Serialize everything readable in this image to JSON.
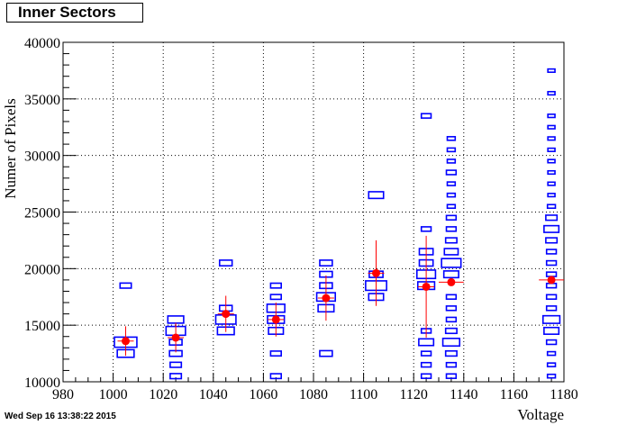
{
  "title": "Inner Sectors",
  "footer_stamp": "Wed Sep 16 13:38:22 2015",
  "colors": {
    "boxes": "#0000ff",
    "profile": "#ff0000",
    "grid": "#000000"
  },
  "chart_data": {
    "type": "box-histogram-with-profile",
    "title": "Inner Sectors",
    "xlabel": "Voltage",
    "ylabel": "Numer of Pixels",
    "xlim": [
      980,
      1180
    ],
    "ylim": [
      10000,
      40000
    ],
    "x_ticks": [
      980,
      1000,
      1020,
      1040,
      1060,
      1080,
      1100,
      1120,
      1140,
      1160,
      1180
    ],
    "y_ticks": [
      10000,
      15000,
      20000,
      25000,
      30000,
      35000,
      40000
    ],
    "grid": true,
    "bin_width_x": 10,
    "bin_width_y": 1000,
    "histogram_bins": [
      {
        "x": 1005,
        "y": 18500,
        "w": 0.2
      },
      {
        "x": 1005,
        "y": 13500,
        "w": 0.8
      },
      {
        "x": 1005,
        "y": 12500,
        "w": 0.45
      },
      {
        "x": 1025,
        "y": 15500,
        "w": 0.4
      },
      {
        "x": 1025,
        "y": 14500,
        "w": 0.6
      },
      {
        "x": 1025,
        "y": 13500,
        "w": 0.25
      },
      {
        "x": 1025,
        "y": 12500,
        "w": 0.25
      },
      {
        "x": 1025,
        "y": 11500,
        "w": 0.2
      },
      {
        "x": 1025,
        "y": 10500,
        "w": 0.2
      },
      {
        "x": 1045,
        "y": 20500,
        "w": 0.25
      },
      {
        "x": 1045,
        "y": 16500,
        "w": 0.25
      },
      {
        "x": 1045,
        "y": 15500,
        "w": 0.65
      },
      {
        "x": 1045,
        "y": 14500,
        "w": 0.45
      },
      {
        "x": 1065,
        "y": 18500,
        "w": 0.18
      },
      {
        "x": 1065,
        "y": 17500,
        "w": 0.18
      },
      {
        "x": 1065,
        "y": 16500,
        "w": 0.5
      },
      {
        "x": 1065,
        "y": 15500,
        "w": 0.45
      },
      {
        "x": 1065,
        "y": 14500,
        "w": 0.35
      },
      {
        "x": 1065,
        "y": 12500,
        "w": 0.18
      },
      {
        "x": 1065,
        "y": 10500,
        "w": 0.18
      },
      {
        "x": 1085,
        "y": 20500,
        "w": 0.25
      },
      {
        "x": 1085,
        "y": 19500,
        "w": 0.25
      },
      {
        "x": 1085,
        "y": 18500,
        "w": 0.25
      },
      {
        "x": 1085,
        "y": 17500,
        "w": 0.55
      },
      {
        "x": 1085,
        "y": 16500,
        "w": 0.4
      },
      {
        "x": 1085,
        "y": 12500,
        "w": 0.25
      },
      {
        "x": 1105,
        "y": 26500,
        "w": 0.35
      },
      {
        "x": 1105,
        "y": 19500,
        "w": 0.3
      },
      {
        "x": 1105,
        "y": 18500,
        "w": 0.7
      },
      {
        "x": 1105,
        "y": 17500,
        "w": 0.35
      },
      {
        "x": 1125,
        "y": 33500,
        "w": 0.15
      },
      {
        "x": 1125,
        "y": 23500,
        "w": 0.15
      },
      {
        "x": 1125,
        "y": 21500,
        "w": 0.3
      },
      {
        "x": 1125,
        "y": 20500,
        "w": 0.3
      },
      {
        "x": 1125,
        "y": 19500,
        "w": 0.55
      },
      {
        "x": 1125,
        "y": 18500,
        "w": 0.45
      },
      {
        "x": 1125,
        "y": 14500,
        "w": 0.15
      },
      {
        "x": 1125,
        "y": 13500,
        "w": 0.35
      },
      {
        "x": 1125,
        "y": 12500,
        "w": 0.15
      },
      {
        "x": 1125,
        "y": 11500,
        "w": 0.15
      },
      {
        "x": 1125,
        "y": 10500,
        "w": 0.15
      },
      {
        "x": 1135,
        "y": 31500,
        "w": 0.1
      },
      {
        "x": 1135,
        "y": 30500,
        "w": 0.1
      },
      {
        "x": 1135,
        "y": 29500,
        "w": 0.1
      },
      {
        "x": 1135,
        "y": 28500,
        "w": 0.15
      },
      {
        "x": 1135,
        "y": 27500,
        "w": 0.1
      },
      {
        "x": 1135,
        "y": 26500,
        "w": 0.1
      },
      {
        "x": 1135,
        "y": 25500,
        "w": 0.1
      },
      {
        "x": 1135,
        "y": 24500,
        "w": 0.15
      },
      {
        "x": 1135,
        "y": 23500,
        "w": 0.15
      },
      {
        "x": 1135,
        "y": 22500,
        "w": 0.2
      },
      {
        "x": 1135,
        "y": 21500,
        "w": 0.3
      },
      {
        "x": 1135,
        "y": 20500,
        "w": 0.6
      },
      {
        "x": 1135,
        "y": 19500,
        "w": 0.35
      },
      {
        "x": 1135,
        "y": 17500,
        "w": 0.15
      },
      {
        "x": 1135,
        "y": 16500,
        "w": 0.15
      },
      {
        "x": 1135,
        "y": 15500,
        "w": 0.15
      },
      {
        "x": 1135,
        "y": 14500,
        "w": 0.2
      },
      {
        "x": 1135,
        "y": 13500,
        "w": 0.45
      },
      {
        "x": 1135,
        "y": 12500,
        "w": 0.2
      },
      {
        "x": 1135,
        "y": 11500,
        "w": 0.15
      },
      {
        "x": 1135,
        "y": 10500,
        "w": 0.15
      },
      {
        "x": 1175,
        "y": 37500,
        "w": 0.08
      },
      {
        "x": 1175,
        "y": 35500,
        "w": 0.08
      },
      {
        "x": 1175,
        "y": 33500,
        "w": 0.08
      },
      {
        "x": 1175,
        "y": 32500,
        "w": 0.08
      },
      {
        "x": 1175,
        "y": 31500,
        "w": 0.08
      },
      {
        "x": 1175,
        "y": 30500,
        "w": 0.08
      },
      {
        "x": 1175,
        "y": 29500,
        "w": 0.08
      },
      {
        "x": 1175,
        "y": 28500,
        "w": 0.08
      },
      {
        "x": 1175,
        "y": 27500,
        "w": 0.08
      },
      {
        "x": 1175,
        "y": 26500,
        "w": 0.08
      },
      {
        "x": 1175,
        "y": 25500,
        "w": 0.1
      },
      {
        "x": 1175,
        "y": 24500,
        "w": 0.2
      },
      {
        "x": 1175,
        "y": 23500,
        "w": 0.35
      },
      {
        "x": 1175,
        "y": 22500,
        "w": 0.2
      },
      {
        "x": 1175,
        "y": 21500,
        "w": 0.15
      },
      {
        "x": 1175,
        "y": 20500,
        "w": 0.15
      },
      {
        "x": 1175,
        "y": 19500,
        "w": 0.15
      },
      {
        "x": 1175,
        "y": 18500,
        "w": 0.15
      },
      {
        "x": 1175,
        "y": 17500,
        "w": 0.15
      },
      {
        "x": 1175,
        "y": 16500,
        "w": 0.15
      },
      {
        "x": 1175,
        "y": 15500,
        "w": 0.45
      },
      {
        "x": 1175,
        "y": 14500,
        "w": 0.35
      },
      {
        "x": 1175,
        "y": 13500,
        "w": 0.15
      },
      {
        "x": 1175,
        "y": 12500,
        "w": 0.1
      },
      {
        "x": 1175,
        "y": 11500,
        "w": 0.1
      },
      {
        "x": 1175,
        "y": 10500,
        "w": 0.1
      }
    ],
    "profile": [
      {
        "x": 1005,
        "y": 13600,
        "xerr": 0,
        "yerr": 1300
      },
      {
        "x": 1025,
        "y": 13900,
        "xerr": 0,
        "yerr": 1300
      },
      {
        "x": 1045,
        "y": 16000,
        "xerr": 0,
        "yerr": 1600
      },
      {
        "x": 1065,
        "y": 15500,
        "xerr": 0,
        "yerr": 1500
      },
      {
        "x": 1085,
        "y": 17400,
        "xerr": 0,
        "yerr": 2000
      },
      {
        "x": 1105,
        "y": 19600,
        "xerr": 0,
        "yerr": 2900
      },
      {
        "x": 1125,
        "y": 18400,
        "xerr": 0,
        "yerr": 4500
      },
      {
        "x": 1135,
        "y": 18800,
        "xerr": 5,
        "yerr": 0
      },
      {
        "x": 1175,
        "y": 19000,
        "xerr": 5,
        "yerr": 0
      }
    ]
  }
}
